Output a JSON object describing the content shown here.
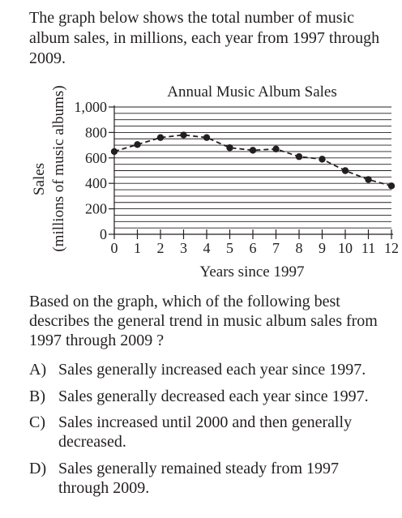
{
  "intro_text": "The graph below shows the total number of music album sales, in millions, each year from 1997 through 2009.",
  "chart_data": {
    "type": "line",
    "title": "Annual Music Album Sales",
    "xlabel": "Years since 1997",
    "ylabel_line1": "Sales",
    "ylabel_line2": "(millions of music albums)",
    "xlim": [
      0,
      12
    ],
    "ylim": [
      0,
      1000
    ],
    "x_ticks": [
      "0",
      "1",
      "2",
      "3",
      "4",
      "5",
      "6",
      "7",
      "8",
      "9",
      "10",
      "11",
      "12"
    ],
    "y_tick_values": [
      0,
      200,
      400,
      600,
      800,
      1000
    ],
    "y_tick_labels": [
      "0",
      "200",
      "400",
      "600",
      "800",
      "1,000"
    ],
    "grid": true,
    "x": [
      0,
      1,
      2,
      3,
      4,
      5,
      6,
      7,
      8,
      9,
      10,
      11,
      12
    ],
    "values": [
      650,
      705,
      760,
      780,
      760,
      680,
      660,
      670,
      610,
      590,
      500,
      430,
      380
    ]
  },
  "question_text": "Based on the graph, which of the following best describes the general trend in music album sales from 1997 through 2009 ?",
  "choices": [
    {
      "letter": "A)",
      "text": "Sales generally increased each year since 1997."
    },
    {
      "letter": "B)",
      "text": "Sales generally decreased each year since 1997."
    },
    {
      "letter": "C)",
      "text": "Sales increased until 2000 and then generally decreased."
    },
    {
      "letter": "D)",
      "text": "Sales generally remained steady from 1997 through 2009."
    }
  ]
}
